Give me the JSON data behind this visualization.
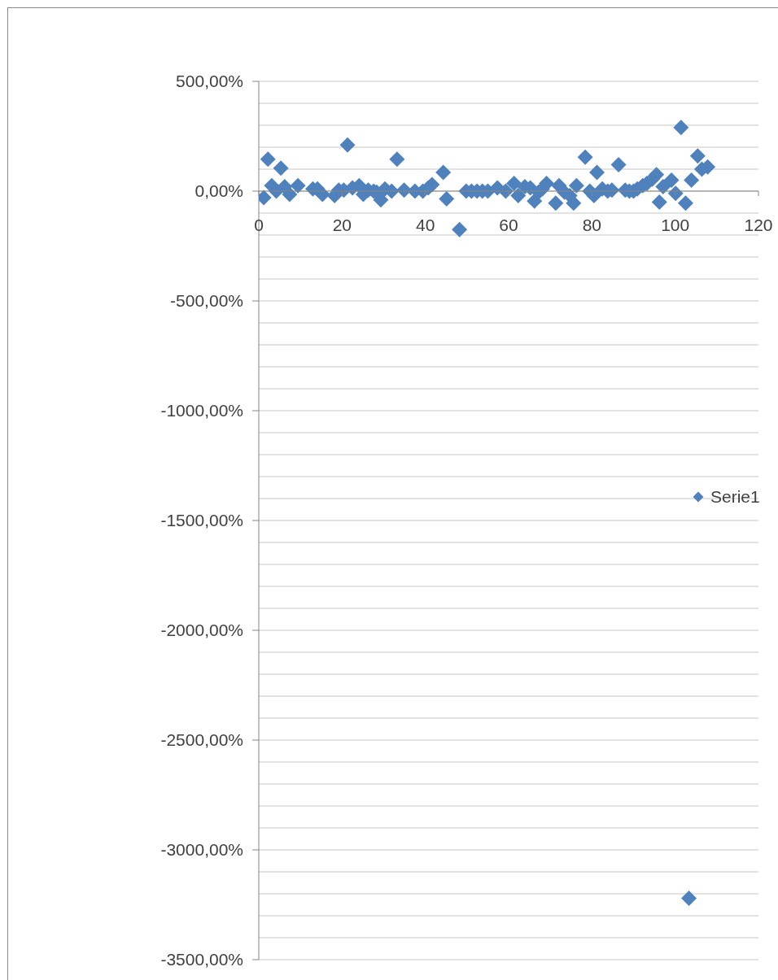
{
  "chart_data": {
    "type": "scatter",
    "x": [
      1.2,
      2.2,
      3.1,
      4.2,
      5.3,
      6.2,
      7.4,
      9.4,
      13.0,
      14.1,
      15.3,
      18.2,
      19.2,
      20.4,
      21.3,
      22.5,
      24.1,
      25.1,
      26.3,
      27.6,
      28.3,
      29.3,
      30.3,
      31.9,
      33.2,
      34.9,
      37.5,
      39.4,
      40.7,
      41.6,
      44.3,
      45.1,
      48.2,
      49.8,
      51.1,
      52.4,
      53.7,
      55.0,
      57.3,
      59.3,
      61.3,
      62.3,
      63.9,
      65.2,
      66.2,
      67.2,
      68.1,
      69.1,
      71.3,
      72.1,
      73.4,
      74.7,
      75.6,
      76.3,
      78.4,
      79.5,
      80.5,
      81.2,
      82.5,
      83.8,
      84.8,
      86.4,
      88.0,
      89.0,
      90.0,
      90.9,
      92.2,
      93.2,
      94.5,
      95.5,
      96.2,
      97.1,
      99.1,
      100.1,
      101.4,
      102.5,
      103.3,
      103.9,
      105.4,
      106.4,
      107.8
    ],
    "series": [
      {
        "name": "Serie1",
        "color": "#4f81bd",
        "values": [
          -30,
          145,
          25,
          0,
          105,
          20,
          -15,
          25,
          10,
          10,
          -15,
          -20,
          5,
          5,
          210,
          15,
          25,
          -15,
          5,
          0,
          -5,
          -40,
          10,
          0,
          145,
          5,
          0,
          0,
          15,
          30,
          85,
          -35,
          -175,
          0,
          0,
          0,
          0,
          0,
          15,
          0,
          35,
          -20,
          20,
          15,
          -45,
          -5,
          10,
          35,
          -55,
          25,
          -5,
          -20,
          -55,
          25,
          155,
          0,
          -20,
          85,
          10,
          0,
          5,
          120,
          5,
          0,
          0,
          10,
          25,
          35,
          55,
          75,
          -50,
          20,
          50,
          -10,
          290,
          -55,
          -3220,
          50,
          160,
          100,
          110
        ]
      }
    ],
    "xlim": [
      0,
      120
    ],
    "xticks": [
      0,
      20,
      40,
      60,
      80,
      100,
      120
    ],
    "ylim": [
      -3500,
      500
    ],
    "yticks": [
      {
        "value": -3500,
        "label": "-3500,00%"
      },
      {
        "value": -3400,
        "label": null
      },
      {
        "value": -3300,
        "label": null
      },
      {
        "value": -3200,
        "label": null
      },
      {
        "value": -3100,
        "label": null
      },
      {
        "value": -3000,
        "label": "-3000,00%"
      },
      {
        "value": -2900,
        "label": null
      },
      {
        "value": -2800,
        "label": null
      },
      {
        "value": -2700,
        "label": null
      },
      {
        "value": -2600,
        "label": null
      },
      {
        "value": -2500,
        "label": "-2500,00%"
      },
      {
        "value": -2400,
        "label": null
      },
      {
        "value": -2300,
        "label": null
      },
      {
        "value": -2200,
        "label": null
      },
      {
        "value": -2100,
        "label": null
      },
      {
        "value": -2000,
        "label": "-2000,00%"
      },
      {
        "value": -1900,
        "label": null
      },
      {
        "value": -1800,
        "label": null
      },
      {
        "value": -1700,
        "label": null
      },
      {
        "value": -1600,
        "label": null
      },
      {
        "value": -1500,
        "label": "-1500,00%"
      },
      {
        "value": -1400,
        "label": null
      },
      {
        "value": -1300,
        "label": null
      },
      {
        "value": -1200,
        "label": null
      },
      {
        "value": -1100,
        "label": null
      },
      {
        "value": -1000,
        "label": "-1000,00%"
      },
      {
        "value": -900,
        "label": null
      },
      {
        "value": -800,
        "label": null
      },
      {
        "value": -700,
        "label": null
      },
      {
        "value": -600,
        "label": null
      },
      {
        "value": -500,
        "label": "-500,00%"
      },
      {
        "value": -400,
        "label": null
      },
      {
        "value": -300,
        "label": null
      },
      {
        "value": -200,
        "label": null
      },
      {
        "value": -100,
        "label": null
      },
      {
        "value": 0,
        "label": "0,00%"
      },
      {
        "value": 100,
        "label": null
      },
      {
        "value": 200,
        "label": null
      },
      {
        "value": 300,
        "label": null
      },
      {
        "value": 400,
        "label": null
      },
      {
        "value": 500,
        "label": "500,00%"
      }
    ],
    "grid": "y",
    "legend": "right",
    "marker": "diamond"
  }
}
